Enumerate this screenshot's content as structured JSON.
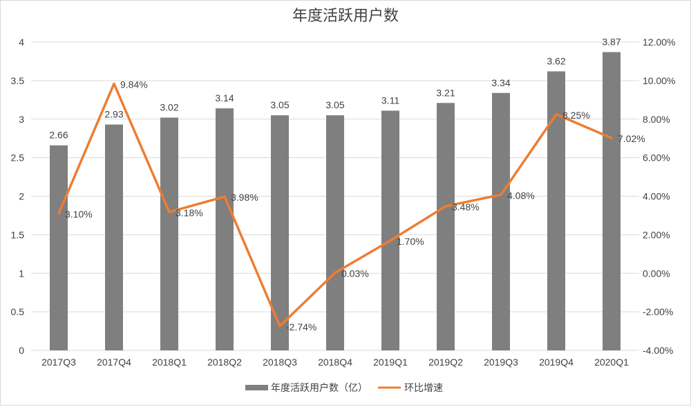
{
  "chart_data": {
    "type": "bar+line",
    "title": "年度活跃用户数",
    "categories": [
      "2017Q3",
      "2017Q4",
      "2018Q1",
      "2018Q2",
      "2018Q3",
      "2018Q4",
      "2019Q1",
      "2019Q2",
      "2019Q3",
      "2019Q4",
      "2020Q1"
    ],
    "series": [
      {
        "name": "年度活跃用户数（亿）",
        "type": "bar",
        "axis": "left",
        "color": "#7f7f7f",
        "values": [
          2.66,
          2.93,
          3.02,
          3.14,
          3.05,
          3.05,
          3.11,
          3.21,
          3.34,
          3.62,
          3.87
        ],
        "labels": [
          "2.66",
          "2.93",
          "3.02",
          "3.14",
          "3.05",
          "3.05",
          "3.11",
          "3.21",
          "3.34",
          "3.62",
          "3.87"
        ]
      },
      {
        "name": "环比增速",
        "type": "line",
        "axis": "right",
        "color": "#ed7d31",
        "values": [
          3.1,
          9.84,
          3.18,
          3.98,
          -2.74,
          0.03,
          1.7,
          3.48,
          4.08,
          8.25,
          7.02
        ],
        "labels": [
          "3.10%",
          "9.84%",
          "3.18%",
          "3.98%",
          "-2.74%",
          "0.03%",
          "1.70%",
          "3.48%",
          "4.08%",
          "8.25%",
          "7.02%"
        ]
      }
    ],
    "left_axis": {
      "ylim": [
        0,
        4
      ],
      "ticks": [
        "0",
        "0.5",
        "1",
        "1.5",
        "2",
        "2.5",
        "3",
        "3.5",
        "4"
      ]
    },
    "right_axis": {
      "ylim": [
        -4,
        12
      ],
      "ticks": [
        "-4.00%",
        "-2.00%",
        "0.00%",
        "2.00%",
        "4.00%",
        "6.00%",
        "8.00%",
        "10.00%",
        "12.00%"
      ]
    },
    "grid": true,
    "legend": "bottom"
  }
}
